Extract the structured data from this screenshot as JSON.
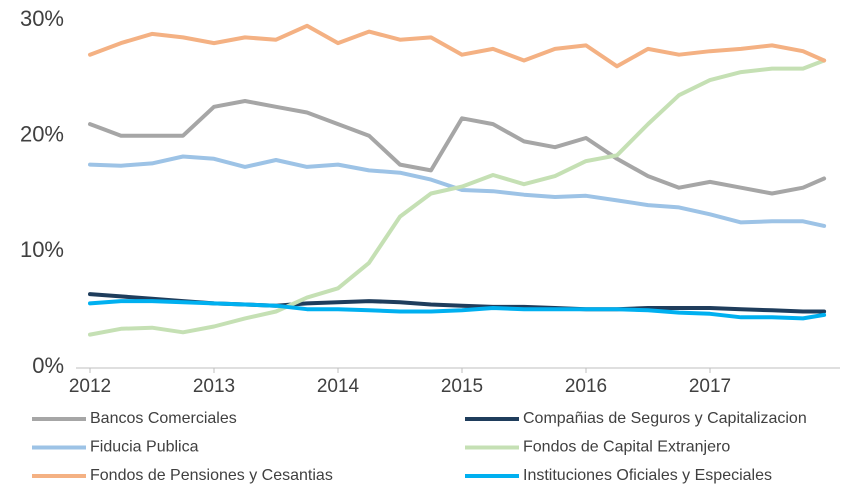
{
  "chart_data": {
    "type": "line",
    "x": [
      2012,
      2012.25,
      2012.5,
      2012.75,
      2013,
      2013.25,
      2013.5,
      2013.75,
      2014,
      2014.25,
      2014.5,
      2014.75,
      2015,
      2015.25,
      2015.5,
      2015.75,
      2016,
      2016.25,
      2016.5,
      2016.75,
      2017,
      2017.25,
      2017.5,
      2017.75,
      2017.92
    ],
    "xlim": [
      2012,
      2018
    ],
    "xticks": [
      2012,
      2013,
      2014,
      2015,
      2016,
      2017
    ],
    "ylim": [
      0,
      30
    ],
    "yticks": [
      {
        "value": 0,
        "label": "0%"
      },
      {
        "value": 10,
        "label": "10%"
      },
      {
        "value": 20,
        "label": "20%"
      },
      {
        "value": 30,
        "label": "30%"
      }
    ],
    "grid": false,
    "legend": "bottom",
    "series": [
      {
        "name": "Bancos Comerciales",
        "color": "#a6a6a6",
        "values": [
          21,
          20,
          20,
          20,
          22.5,
          23,
          22.5,
          22,
          21,
          20,
          17.5,
          17,
          21.5,
          21,
          19.5,
          19,
          19.8,
          18,
          16.5,
          15.5,
          16,
          15.5,
          15,
          15.5,
          16.3
        ]
      },
      {
        "name": "Compañias de Seguros y Capitalizacion",
        "color": "#1f3d5c",
        "values": [
          6.3,
          6.1,
          5.9,
          5.7,
          5.5,
          5.4,
          5.3,
          5.5,
          5.6,
          5.7,
          5.6,
          5.4,
          5.3,
          5.2,
          5.2,
          5.1,
          5.0,
          5.0,
          5.1,
          5.1,
          5.1,
          5.0,
          4.9,
          4.8,
          4.8
        ]
      },
      {
        "name": "Fiducia Publica",
        "color": "#9dc3e6",
        "values": [
          17.5,
          17.4,
          17.6,
          18.2,
          18.0,
          17.3,
          17.9,
          17.3,
          17.5,
          17.0,
          16.8,
          16.2,
          15.3,
          15.2,
          14.9,
          14.7,
          14.8,
          14.4,
          14.0,
          13.8,
          13.2,
          12.5,
          12.6,
          12.6,
          12.2
        ]
      },
      {
        "name": "Fondos de Capital Extranjero",
        "color": "#c5e0b4",
        "values": [
          2.8,
          3.3,
          3.4,
          3.0,
          3.5,
          4.2,
          4.8,
          6.0,
          6.8,
          9.0,
          13.0,
          15.0,
          15.6,
          16.6,
          15.8,
          16.5,
          17.8,
          18.3,
          21.0,
          23.5,
          24.8,
          25.5,
          25.8,
          25.8,
          26.5
        ]
      },
      {
        "name": "Fondos de Pensiones y Cesantias",
        "color": "#f4b183",
        "values": [
          27.0,
          28.0,
          28.8,
          28.5,
          28.0,
          28.5,
          28.3,
          29.5,
          28.0,
          29.0,
          28.3,
          28.5,
          27.0,
          27.5,
          26.5,
          27.5,
          27.8,
          26.0,
          27.5,
          27.0,
          27.3,
          27.5,
          27.8,
          27.3,
          26.5
        ]
      },
      {
        "name": "Instituciones Oficiales y Especiales",
        "color": "#00b0f0",
        "values": [
          5.5,
          5.7,
          5.7,
          5.6,
          5.5,
          5.4,
          5.3,
          5.0,
          5.0,
          4.9,
          4.8,
          4.8,
          4.9,
          5.1,
          5.0,
          5.0,
          5.0,
          5.0,
          4.9,
          4.7,
          4.6,
          4.3,
          4.3,
          4.2,
          4.5
        ]
      }
    ]
  }
}
